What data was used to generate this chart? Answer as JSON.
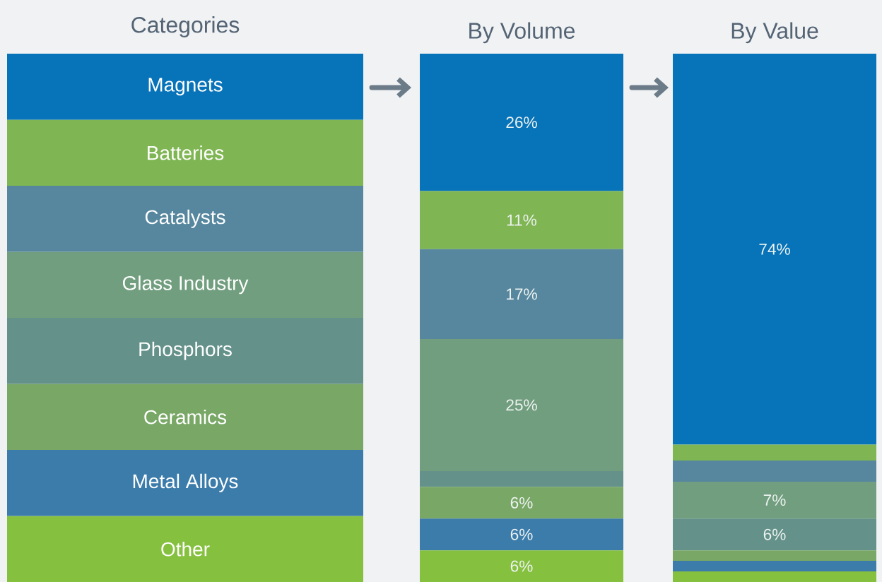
{
  "chart_data": {
    "type": "bar",
    "stacked": true,
    "legend": "left",
    "legend_title": "Categories",
    "categories": [
      "By Volume",
      "By Value"
    ],
    "ylim": [
      0,
      100
    ],
    "series": [
      {
        "name": "Other",
        "color": "#86c03f",
        "values": [
          6,
          2
        ],
        "value_labels": [
          "6%",
          null
        ]
      },
      {
        "name": "Metal Alloys",
        "color": "#3c7cab",
        "values": [
          6,
          2
        ],
        "value_labels": [
          "6%",
          null
        ]
      },
      {
        "name": "Ceramics",
        "color": "#78a766",
        "values": [
          6,
          2
        ],
        "value_labels": [
          "6%",
          null
        ]
      },
      {
        "name": "Phosphors",
        "color": "#64928a",
        "values": [
          3,
          6
        ],
        "value_labels": [
          null,
          "6%"
        ]
      },
      {
        "name": "Glass Industry",
        "color": "#719e7e",
        "values": [
          25,
          7
        ],
        "value_labels": [
          "25%",
          "7%"
        ]
      },
      {
        "name": "Catalysts",
        "color": "#56879e",
        "values": [
          17,
          4
        ],
        "value_labels": [
          "17%",
          null
        ]
      },
      {
        "name": "Batteries",
        "color": "#7fb552",
        "values": [
          11,
          3
        ],
        "value_labels": [
          "11%",
          null
        ]
      },
      {
        "name": "Magnets",
        "color": "#0773b9",
        "values": [
          26,
          74
        ],
        "value_labels": [
          "26%",
          "74%"
        ]
      }
    ]
  }
}
